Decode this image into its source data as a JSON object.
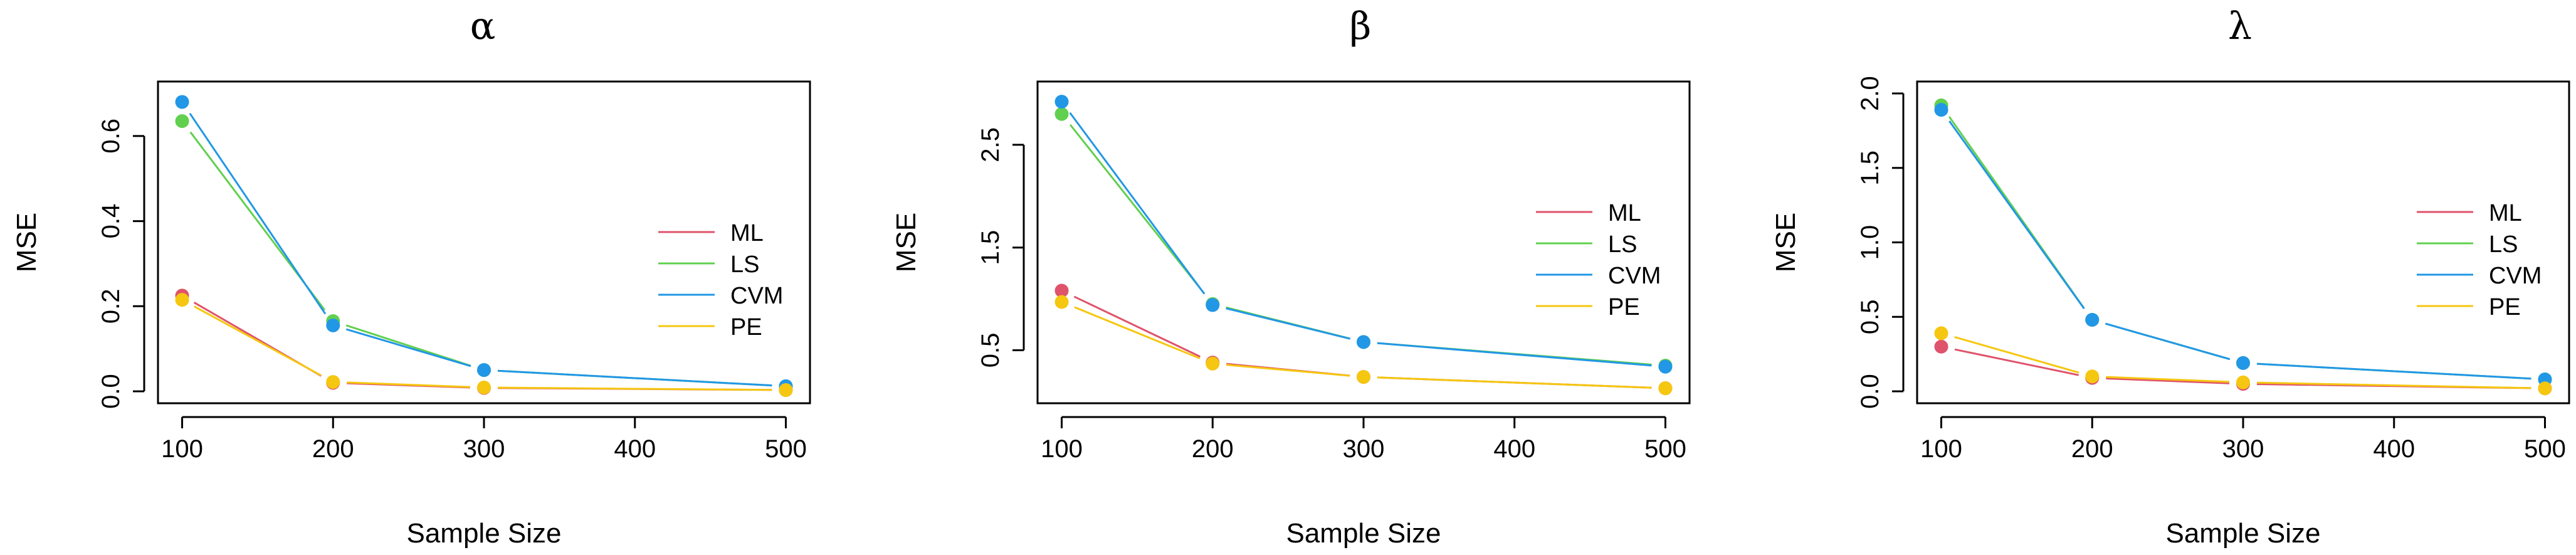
{
  "colors": {
    "ML": "#DF536B",
    "LS": "#61D04F",
    "CVM": "#2297E6",
    "PE": "#F5C710",
    "axis": "#000000"
  },
  "chart_data": [
    {
      "type": "line",
      "title": "α",
      "xlabel": "Sample Size",
      "ylabel": "MSE",
      "x": [
        100,
        200,
        300,
        500
      ],
      "xticks": [
        "100",
        "200",
        "300",
        "400",
        "500"
      ],
      "yticks": [
        "0.0",
        "0.2",
        "0.4",
        "0.6"
      ],
      "xlim": [
        100,
        500
      ],
      "ylim": [
        0,
        0.7
      ],
      "series": [
        {
          "name": "ML",
          "values": [
            0.225,
            0.02,
            0.008,
            0.003
          ]
        },
        {
          "name": "LS",
          "values": [
            0.635,
            0.165,
            0.05,
            0.012
          ]
        },
        {
          "name": "CVM",
          "values": [
            0.68,
            0.155,
            0.05,
            0.012
          ]
        },
        {
          "name": "PE",
          "values": [
            0.215,
            0.022,
            0.009,
            0.003
          ]
        }
      ]
    },
    {
      "type": "line",
      "title": "β",
      "xlabel": "Sample Size",
      "ylabel": "MSE",
      "x": [
        100,
        200,
        300,
        500
      ],
      "xticks": [
        "100",
        "200",
        "300",
        "400",
        "500"
      ],
      "yticks": [
        "0.5",
        "1.5",
        "2.5"
      ],
      "xlim": [
        100,
        500
      ],
      "ylim": [
        0.1,
        3.0
      ],
      "series": [
        {
          "name": "ML",
          "values": [
            1.08,
            0.38,
            0.24,
            0.13
          ]
        },
        {
          "name": "LS",
          "values": [
            2.8,
            0.95,
            0.58,
            0.35
          ]
        },
        {
          "name": "CVM",
          "values": [
            2.92,
            0.94,
            0.58,
            0.34
          ]
        },
        {
          "name": "PE",
          "values": [
            0.97,
            0.37,
            0.24,
            0.13
          ]
        }
      ]
    },
    {
      "type": "line",
      "title": "λ",
      "xlabel": "Sample Size",
      "ylabel": "MSE",
      "x": [
        100,
        200,
        300,
        500
      ],
      "xticks": [
        "100",
        "200",
        "300",
        "400",
        "500"
      ],
      "yticks": [
        "0.0",
        "0.5",
        "1.0",
        "1.5",
        "2.0"
      ],
      "xlim": [
        100,
        500
      ],
      "ylim": [
        0,
        2.0
      ],
      "series": [
        {
          "name": "ML",
          "values": [
            0.3,
            0.09,
            0.05,
            0.02
          ]
        },
        {
          "name": "LS",
          "values": [
            1.92,
            0.48,
            0.19,
            0.08
          ]
        },
        {
          "name": "CVM",
          "values": [
            1.89,
            0.48,
            0.19,
            0.08
          ]
        },
        {
          "name": "PE",
          "values": [
            0.39,
            0.1,
            0.06,
            0.02
          ]
        }
      ]
    }
  ]
}
